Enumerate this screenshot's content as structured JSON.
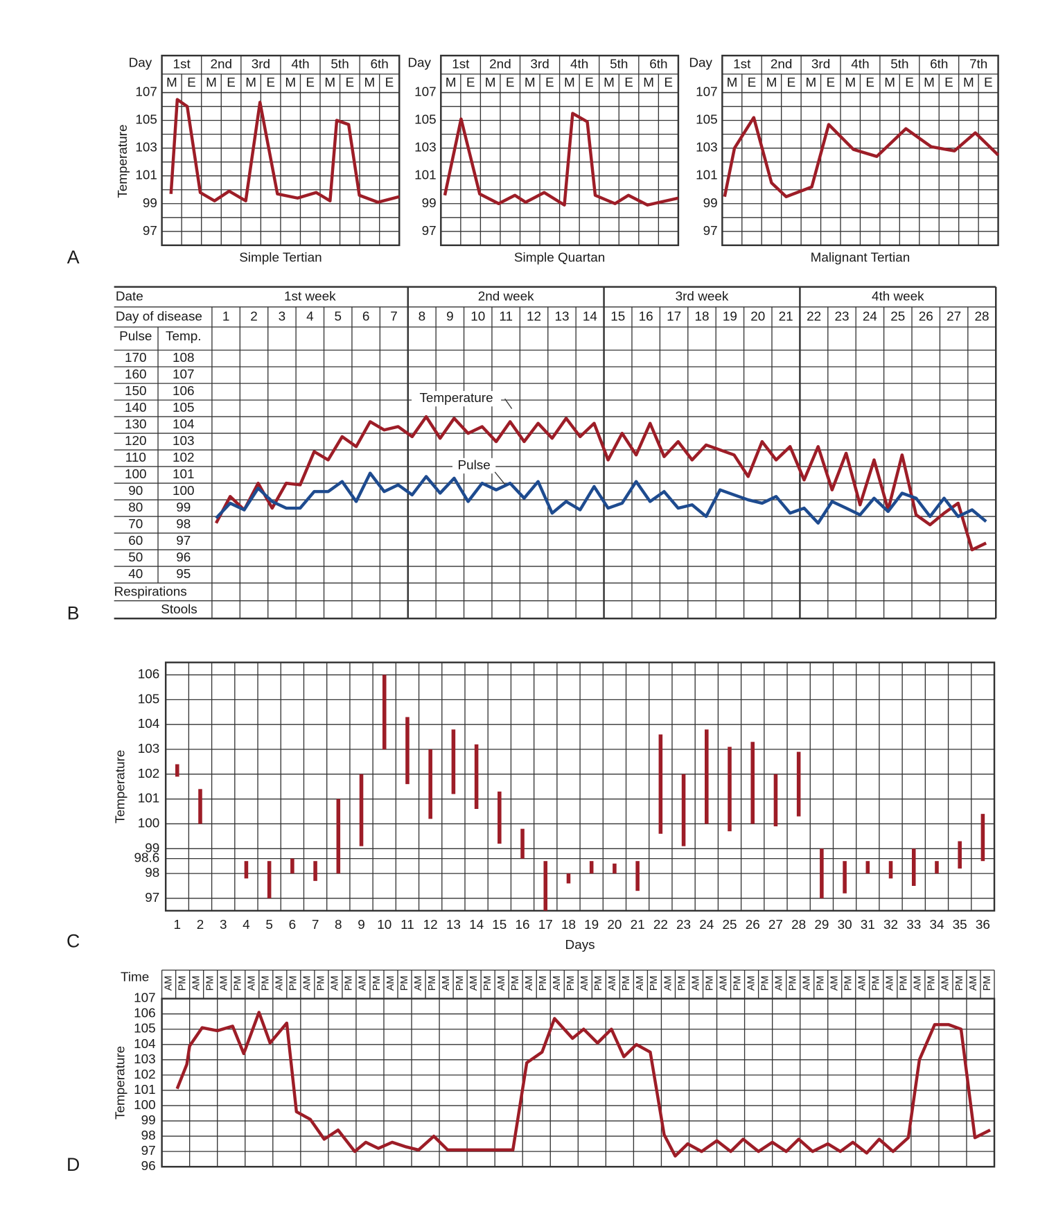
{
  "chart_data": [
    {
      "type": "line",
      "panel": "A",
      "title": "Simple Tertian",
      "ylabel": "Temperature",
      "day_label": "Day",
      "days": [
        "1st",
        "2nd",
        "3rd",
        "4th",
        "5th",
        "6th"
      ],
      "periods": [
        "M",
        "E",
        "M",
        "E",
        "M",
        "E",
        "M",
        "E",
        "M",
        "E",
        "M",
        "E"
      ],
      "xlim": [
        0,
        6
      ],
      "ylim": [
        96,
        107
      ],
      "yticks": [
        97,
        99,
        101,
        103,
        105,
        107
      ],
      "ygrid": [
        96,
        97,
        98,
        99,
        100,
        101,
        102,
        103,
        104,
        105,
        106,
        107
      ],
      "x": [
        0.23,
        0.39,
        0.64,
        0.97,
        1.33,
        1.7,
        2.12,
        2.48,
        2.92,
        3.43,
        3.9,
        4.25,
        4.42,
        4.72,
        4.99,
        5.46,
        6
      ],
      "values": [
        99.7,
        106.5,
        106,
        99.8,
        99.2,
        99.9,
        99.2,
        106.3,
        99.7,
        99.4,
        99.8,
        99.2,
        105,
        104.7,
        99.6,
        99.1,
        99.5
      ],
      "color": "#9d1d27"
    },
    {
      "type": "line",
      "title": "Simple Quartan",
      "day_label": "Day",
      "days": [
        "1st",
        "2nd",
        "3rd",
        "4th",
        "5th",
        "6th"
      ],
      "periods": [
        "M",
        "E",
        "M",
        "E",
        "M",
        "E",
        "M",
        "E",
        "M",
        "E",
        "M",
        "E"
      ],
      "xlim": [
        0,
        6
      ],
      "ylim": [
        96,
        107
      ],
      "yticks": [
        97,
        99,
        101,
        103,
        105,
        107
      ],
      "ygrid": [
        96,
        97,
        98,
        99,
        100,
        101,
        102,
        103,
        104,
        105,
        106,
        107
      ],
      "x": [
        0.1,
        0.51,
        0.98,
        1.46,
        1.87,
        2.14,
        2.61,
        3.12,
        3.33,
        3.7,
        3.9,
        4.4,
        4.74,
        5.22,
        6
      ],
      "values": [
        99.6,
        105.1,
        99.7,
        99,
        99.6,
        99.1,
        99.8,
        98.9,
        105.5,
        104.9,
        99.6,
        99,
        99.6,
        98.9,
        99.4
      ],
      "color": "#9d1d27"
    },
    {
      "type": "line",
      "title": "Malignant Tertian",
      "day_label": "Day",
      "days": [
        "1st",
        "2nd",
        "3rd",
        "4th",
        "5th",
        "6th",
        "7th"
      ],
      "periods": [
        "M",
        "E",
        "M",
        "E",
        "M",
        "E",
        "M",
        "E",
        "M",
        "E",
        "M",
        "E",
        "M",
        "E"
      ],
      "xlim": [
        0,
        7
      ],
      "ylim": [
        96,
        107
      ],
      "yticks": [
        97,
        99,
        101,
        103,
        105,
        107
      ],
      "ygrid": [
        96,
        97,
        98,
        99,
        100,
        101,
        102,
        103,
        104,
        105,
        106,
        107
      ],
      "x": [
        0.06,
        0.31,
        0.8,
        1.25,
        1.62,
        2.27,
        2.7,
        3.33,
        3.92,
        4.66,
        5.3,
        5.89,
        6.42,
        7
      ],
      "values": [
        99.5,
        103,
        105.2,
        100.5,
        99.5,
        100.2,
        104.7,
        102.9,
        102.4,
        104.4,
        103.1,
        102.8,
        104.1,
        102.5
      ],
      "color": "#9d1d27"
    },
    {
      "type": "line",
      "panel": "B",
      "date_label": "Date",
      "day_label": "Day of disease",
      "weeks": [
        "1st week",
        "2nd week",
        "3rd week",
        "4th week"
      ],
      "days": [
        1,
        2,
        3,
        4,
        5,
        6,
        7,
        8,
        9,
        10,
        11,
        12,
        13,
        14,
        15,
        16,
        17,
        18,
        19,
        20,
        21,
        22,
        23,
        24,
        25,
        26,
        27,
        28
      ],
      "y2label": "Pulse",
      "ylabel": "Temp.",
      "rows": [
        "Respirations",
        "Stools"
      ],
      "xlim": [
        0.5,
        28.5
      ],
      "ylim": [
        94.5,
        108.5
      ],
      "yticks": [
        108,
        107,
        106,
        105,
        104,
        103,
        102,
        101,
        100,
        99,
        98,
        97,
        96,
        95
      ],
      "y2lim": [
        35,
        175
      ],
      "y2ticks": [
        170,
        160,
        150,
        140,
        130,
        120,
        110,
        100,
        90,
        80,
        70,
        60,
        50,
        40
      ],
      "x": [
        0.65,
        1.15,
        1.65,
        2.15,
        2.65,
        3.15,
        3.65,
        4.15,
        4.65,
        5.15,
        5.65,
        6.15,
        6.65,
        7.15,
        7.65,
        8.15,
        8.65,
        9.15,
        9.65,
        10.15,
        10.65,
        11.15,
        11.65,
        12.15,
        12.65,
        13.15,
        13.65,
        14.15,
        14.65,
        15.15,
        15.65,
        16.15,
        16.65,
        17.15,
        17.65,
        18.15,
        18.65,
        19.15,
        19.65,
        20.15,
        20.65,
        21.15,
        21.65,
        22.15,
        22.65,
        23.15,
        23.65,
        24.15,
        24.65,
        25.15,
        25.65,
        26.15,
        26.65,
        27.15,
        27.65,
        28.15
      ],
      "series": [
        {
          "name": "Temperature",
          "color": "#9d1d27",
          "values": [
            98.1,
            99.7,
            98.9,
            100.5,
            99,
            100.5,
            100.4,
            102.4,
            101.9,
            103.3,
            102.7,
            104.2,
            103.7,
            103.9,
            103.3,
            104.5,
            103.2,
            104.4,
            103.5,
            103.9,
            103,
            104.2,
            103,
            104.1,
            103.2,
            104.4,
            103.3,
            104.1,
            101.9,
            103.5,
            102.2,
            104.1,
            102.1,
            103,
            101.9,
            102.8,
            102.5,
            102.2,
            100.9,
            103,
            101.9,
            102.7,
            100.7,
            102.7,
            100.1,
            102.3,
            99.2,
            101.9,
            98.9,
            102.2,
            98.6,
            98,
            98.7,
            99.3,
            96.5,
            96.9
          ]
        },
        {
          "name": "Pulse",
          "color": "#1e4b8f",
          "axis": "y2",
          "values": [
            74,
            83,
            79,
            92,
            84,
            80,
            80,
            90,
            90,
            96,
            84,
            101,
            90,
            94,
            88,
            99,
            89,
            98,
            84,
            95,
            91,
            95,
            86,
            96,
            77,
            84,
            79,
            93,
            80,
            83,
            96,
            84,
            90,
            80,
            82,
            75,
            91,
            88,
            85,
            83,
            87,
            77,
            80,
            71,
            84,
            80,
            76,
            86,
            78,
            89,
            86,
            75,
            86,
            75,
            79,
            72
          ]
        }
      ]
    },
    {
      "type": "range",
      "panel": "C",
      "ylabel": "Temperature",
      "xlabel": "Days",
      "categories": [
        1,
        2,
        3,
        4,
        5,
        6,
        7,
        8,
        9,
        10,
        11,
        12,
        13,
        14,
        15,
        16,
        17,
        18,
        19,
        20,
        21,
        22,
        23,
        24,
        25,
        26,
        27,
        28,
        29,
        30,
        31,
        32,
        33,
        34,
        35,
        36
      ],
      "low": [
        101.9,
        100,
        null,
        97.8,
        97,
        98,
        97.7,
        98,
        99.1,
        103,
        101.6,
        100.2,
        101.2,
        100.6,
        99.2,
        98.6,
        96.5,
        97.6,
        98,
        98,
        97.3,
        99.6,
        99.1,
        100,
        99.7,
        100,
        99.9,
        100.3,
        97,
        97.2,
        98,
        97.8,
        97.5,
        98,
        98.2,
        98.5
      ],
      "high": [
        102.4,
        101.4,
        null,
        98.5,
        98.5,
        98.6,
        98.5,
        101,
        102,
        106,
        104.3,
        103,
        103.8,
        103.2,
        101.3,
        99.8,
        98.5,
        98,
        98.5,
        98.4,
        98.5,
        103.6,
        102,
        103.8,
        103.1,
        103.3,
        102,
        102.9,
        99,
        98.5,
        98.5,
        98.5,
        99,
        98.5,
        99.3,
        100.4
      ],
      "ylim": [
        96.5,
        106.5
      ],
      "yticks": [
        97,
        98,
        98.6,
        99,
        100,
        101,
        102,
        103,
        104,
        105,
        106
      ],
      "color": "#9d1d27"
    },
    {
      "type": "line",
      "panel": "D",
      "ylabel": "Temperature",
      "time_label": "Time",
      "periods": [
        "AM",
        "PM",
        "AM",
        "PM",
        "AM",
        "PM",
        "AM",
        "PM",
        "AM",
        "PM",
        "AM",
        "PM",
        "AM",
        "PM",
        "AM",
        "PM",
        "AM",
        "PM",
        "AM",
        "PM",
        "AM",
        "PM",
        "AM",
        "PM",
        "AM",
        "PM",
        "AM",
        "PM",
        "AM",
        "PM",
        "AM",
        "PM",
        "AM",
        "PM",
        "AM",
        "PM",
        "AM",
        "PM",
        "AM",
        "PM",
        "AM",
        "PM",
        "AM",
        "PM",
        "AM",
        "PM",
        "AM",
        "PM",
        "AM",
        "PM",
        "AM",
        "PM",
        "AM",
        "PM",
        "AM",
        "PM",
        "AM",
        "PM",
        "AM",
        "PM"
      ],
      "xlim": [
        0,
        60
      ],
      "ylim": [
        96,
        107
      ],
      "yticks": [
        96,
        97,
        98,
        99,
        100,
        101,
        102,
        103,
        104,
        105,
        106,
        107
      ],
      "x": [
        1.1,
        1.8,
        2.0,
        2.9,
        4.0,
        5.1,
        5.9,
        7.0,
        7.8,
        9.0,
        9.7,
        10.7,
        11.7,
        12.7,
        13.9,
        14.7,
        15.6,
        16.6,
        17.6,
        18.5,
        19.6,
        20.6,
        25.3,
        26.3,
        27.4,
        28.3,
        29.6,
        30.4,
        31.4,
        32.4,
        33.3,
        34.2,
        35.2,
        36.2,
        37.0,
        37.9,
        38.9,
        40.0,
        41.0,
        41.9,
        43.0,
        44.0,
        45.0,
        45.9,
        46.9,
        48.0,
        48.9,
        49.8,
        50.8,
        51.7,
        52.7,
        53.8,
        54.6,
        55.7,
        56.7,
        57.6,
        58.6,
        59.7
      ],
      "values": [
        101.1,
        102.7,
        103.9,
        105.1,
        104.9,
        105.2,
        103.4,
        106.1,
        104.1,
        105.4,
        99.6,
        99.1,
        97.8,
        98.4,
        97,
        97.6,
        97.2,
        97.6,
        97.3,
        97.1,
        98,
        97.1,
        97.1,
        102.8,
        103.5,
        105.7,
        104.4,
        105,
        104.1,
        105,
        103.2,
        104,
        103.5,
        98.1,
        96.7,
        97.5,
        97,
        97.7,
        97,
        97.8,
        97,
        97.6,
        97,
        97.8,
        97,
        97.5,
        97,
        97.6,
        96.9,
        97.8,
        97,
        97.9,
        103,
        105.3,
        105.3,
        105,
        97.9,
        98.4
      ],
      "color": "#9d1d27"
    }
  ]
}
